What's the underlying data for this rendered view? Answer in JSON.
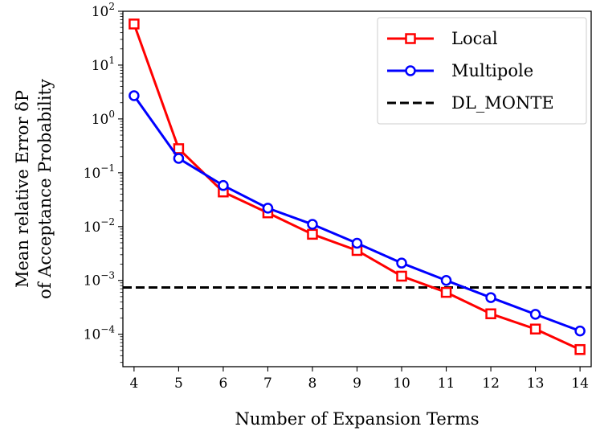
{
  "chart_data": {
    "type": "line",
    "yscale": "log",
    "title": "",
    "xlabel": "Number of Expansion Terms",
    "ylabel_line1": "Mean relative Error δP",
    "ylabel_line2": "of Acceptance Probability",
    "xlim": [
      3.75,
      14.25
    ],
    "ylim": [
      2.5e-05,
      100
    ],
    "xticks": [
      4,
      5,
      6,
      7,
      8,
      9,
      10,
      11,
      12,
      13,
      14
    ],
    "yticks": [
      {
        "value": 0.0001,
        "base": "10",
        "exp": "−4"
      },
      {
        "value": 0.001,
        "base": "10",
        "exp": "−3"
      },
      {
        "value": 0.01,
        "base": "10",
        "exp": "−2"
      },
      {
        "value": 0.1,
        "base": "10",
        "exp": "−1"
      },
      {
        "value": 1,
        "base": "10",
        "exp": "0"
      },
      {
        "value": 10,
        "base": "10",
        "exp": "1"
      },
      {
        "value": 100,
        "base": "10",
        "exp": "2"
      }
    ],
    "legend_position": "top-right",
    "series": [
      {
        "name": "Local",
        "color": "#ff0000",
        "marker": "square",
        "x": [
          4,
          5,
          6,
          7,
          8,
          9,
          10,
          11,
          12,
          13,
          14
        ],
        "y": [
          58,
          0.28,
          0.044,
          0.018,
          0.0072,
          0.0036,
          0.0012,
          0.0006,
          0.00024,
          0.000125,
          5.2e-05
        ]
      },
      {
        "name": "Multipole",
        "color": "#0000ff",
        "marker": "circle",
        "x": [
          4,
          5,
          6,
          7,
          8,
          9,
          10,
          11,
          12,
          13,
          14
        ],
        "y": [
          2.7,
          0.185,
          0.058,
          0.022,
          0.011,
          0.0049,
          0.0021,
          0.001,
          0.00048,
          0.000235,
          0.000115
        ]
      }
    ],
    "reference_line": {
      "name": "DL_MONTE",
      "color": "#000000",
      "style": "dashed",
      "y": 0.00074
    }
  }
}
